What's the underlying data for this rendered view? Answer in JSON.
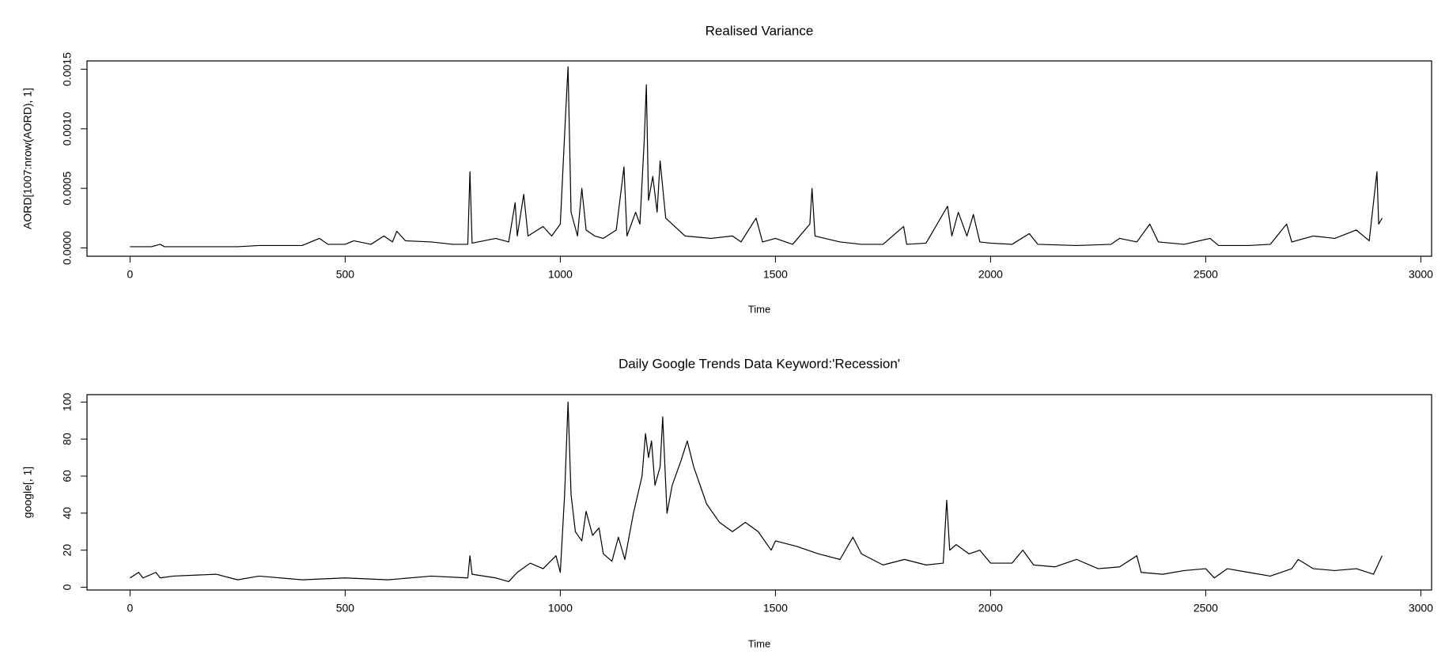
{
  "chart_data": [
    {
      "type": "line",
      "title": "Realised Variance",
      "xlabel": "Time",
      "ylabel": "AORD[1007:nrow(AORD), 1]",
      "color": "#000000",
      "xlim": [
        -100,
        3025
      ],
      "ylim": [
        -7e-05,
        0.00157
      ],
      "xticks": [
        0,
        500,
        1000,
        1500,
        2000,
        2500,
        3000
      ],
      "yticks": [
        {
          "value": 0,
          "label": "0.0000"
        },
        {
          "value": 0.0005,
          "label": "0.0005"
        },
        {
          "value": 0.001,
          "label": "0.0010"
        },
        {
          "value": 0.0015,
          "label": "0.0015"
        }
      ],
      "x": [
        0,
        50,
        70,
        80,
        150,
        250,
        300,
        400,
        440,
        460,
        500,
        520,
        560,
        590,
        610,
        620,
        640,
        700,
        750,
        785,
        790,
        795,
        850,
        880,
        895,
        900,
        915,
        925,
        960,
        980,
        1000,
        1012,
        1018,
        1025,
        1040,
        1050,
        1060,
        1080,
        1100,
        1130,
        1148,
        1155,
        1175,
        1185,
        1195,
        1200,
        1205,
        1215,
        1225,
        1232,
        1245,
        1260,
        1290,
        1350,
        1400,
        1420,
        1455,
        1470,
        1500,
        1540,
        1580,
        1585,
        1592,
        1650,
        1700,
        1750,
        1798,
        1805,
        1850,
        1900,
        1910,
        1925,
        1945,
        1960,
        1975,
        2000,
        2050,
        2090,
        2110,
        2200,
        2280,
        2300,
        2340,
        2370,
        2390,
        2450,
        2510,
        2530,
        2600,
        2650,
        2688,
        2700,
        2750,
        2800,
        2850,
        2880,
        2898,
        2902,
        2910
      ],
      "values": [
        1e-05,
        1e-05,
        3e-05,
        1e-05,
        1e-05,
        1e-05,
        2e-05,
        2e-05,
        8e-05,
        3e-05,
        3e-05,
        6e-05,
        3e-05,
        0.0001,
        5e-05,
        0.00014,
        6e-05,
        5e-05,
        3e-05,
        3e-05,
        0.00064,
        4e-05,
        8e-05,
        5e-05,
        0.00038,
        0.0001,
        0.00045,
        0.0001,
        0.00018,
        0.0001,
        0.0002,
        0.0011,
        0.00152,
        0.0003,
        0.0001,
        0.0005,
        0.00015,
        0.0001,
        8e-05,
        0.00015,
        0.00068,
        0.0001,
        0.0003,
        0.0002,
        0.0009,
        0.00137,
        0.0004,
        0.0006,
        0.0003,
        0.00073,
        0.00025,
        0.0002,
        0.0001,
        8e-05,
        0.0001,
        5e-05,
        0.00025,
        5e-05,
        8e-05,
        3e-05,
        0.0002,
        0.0005,
        0.0001,
        5e-05,
        3e-05,
        3e-05,
        0.00018,
        3e-05,
        4e-05,
        0.00035,
        0.0001,
        0.0003,
        0.0001,
        0.00028,
        5e-05,
        4e-05,
        3e-05,
        0.00012,
        3e-05,
        2e-05,
        3e-05,
        8e-05,
        5e-05,
        0.0002,
        5e-05,
        3e-05,
        8e-05,
        2e-05,
        2e-05,
        3e-05,
        0.0002,
        5e-05,
        0.0001,
        8e-05,
        0.00015,
        6e-05,
        0.00064,
        0.0002,
        0.00025
      ]
    },
    {
      "type": "line",
      "title": "Daily Google Trends Data Keyword:'Recession'",
      "xlabel": "Time",
      "ylabel": "google[, 1]",
      "color": "#000000",
      "xlim": [
        -100,
        3025
      ],
      "ylim": [
        -1.5,
        104
      ],
      "xticks": [
        0,
        500,
        1000,
        1500,
        2000,
        2500,
        3000
      ],
      "yticks": [
        0,
        20,
        40,
        60,
        80,
        100
      ],
      "x": [
        0,
        20,
        30,
        60,
        70,
        100,
        200,
        250,
        300,
        400,
        500,
        600,
        700,
        785,
        790,
        795,
        850,
        880,
        900,
        930,
        960,
        990,
        1000,
        1010,
        1018,
        1025,
        1035,
        1050,
        1060,
        1075,
        1090,
        1100,
        1120,
        1135,
        1150,
        1170,
        1190,
        1198,
        1205,
        1212,
        1220,
        1232,
        1238,
        1248,
        1260,
        1280,
        1295,
        1310,
        1340,
        1370,
        1400,
        1430,
        1460,
        1490,
        1500,
        1550,
        1600,
        1650,
        1680,
        1700,
        1750,
        1800,
        1850,
        1890,
        1898,
        1905,
        1920,
        1950,
        1975,
        2000,
        2050,
        2075,
        2100,
        2150,
        2200,
        2250,
        2300,
        2340,
        2350,
        2400,
        2450,
        2500,
        2520,
        2550,
        2600,
        2650,
        2700,
        2715,
        2750,
        2800,
        2850,
        2890,
        2910
      ],
      "values": [
        5,
        8,
        5,
        8,
        5,
        6,
        7,
        4,
        6,
        4,
        5,
        4,
        6,
        5,
        17,
        7,
        5,
        3,
        8,
        13,
        10,
        17,
        8,
        50,
        100,
        50,
        30,
        25,
        41,
        28,
        32,
        18,
        14,
        27,
        15,
        40,
        60,
        83,
        70,
        79,
        55,
        65,
        92,
        40,
        55,
        68,
        79,
        65,
        45,
        35,
        30,
        35,
        30,
        20,
        25,
        22,
        18,
        15,
        27,
        18,
        12,
        15,
        12,
        13,
        47,
        20,
        23,
        18,
        20,
        13,
        13,
        20,
        12,
        11,
        15,
        10,
        11,
        17,
        8,
        7,
        9,
        10,
        5,
        10,
        8,
        6,
        10,
        15,
        10,
        9,
        10,
        7,
        17
      ]
    }
  ]
}
